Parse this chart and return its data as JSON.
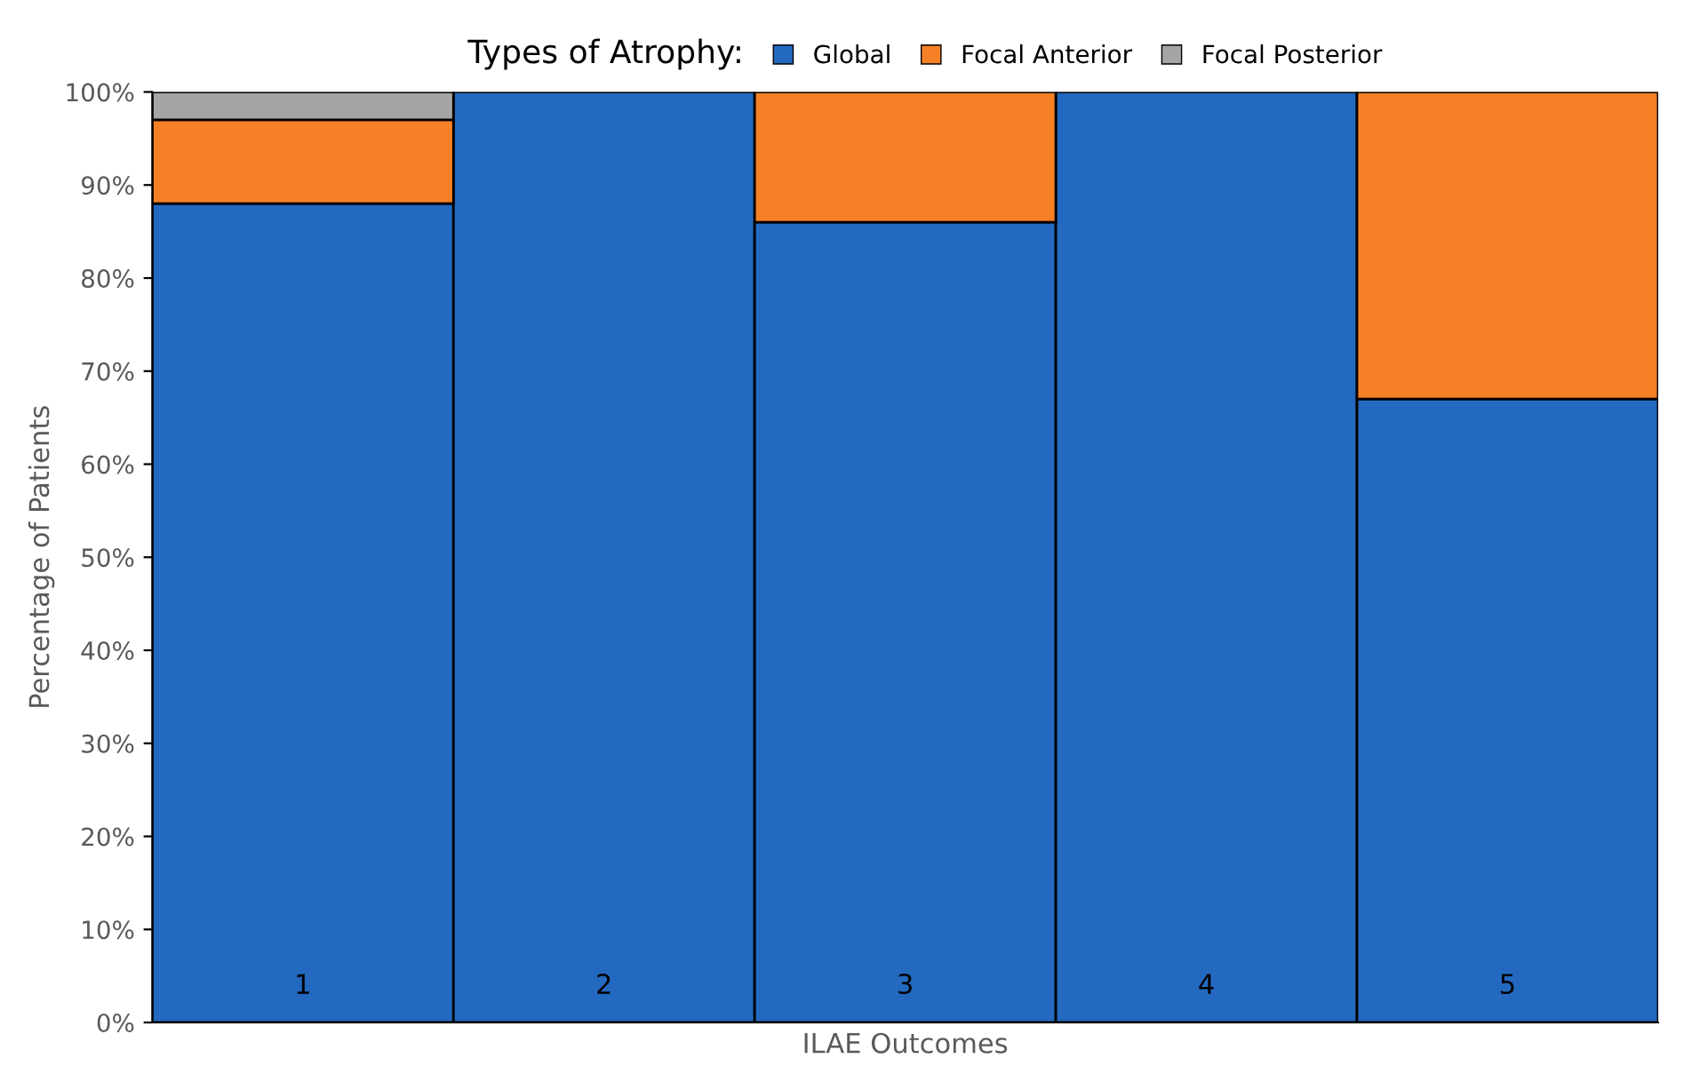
{
  "chart_data": {
    "type": "bar",
    "stacked": true,
    "xlabel": "ILAE Outcomes",
    "ylabel": "Percentage of Patients",
    "legend_title": "Types of Atrophy:",
    "legend": "top",
    "categories": [
      "1",
      "2",
      "3",
      "4",
      "5"
    ],
    "series": [
      {
        "name": "Global",
        "color": "#2469c0",
        "values": [
          88,
          100,
          86,
          100,
          67
        ]
      },
      {
        "name": "Focal Anterior",
        "color": "#f58025",
        "values": [
          9,
          null,
          14,
          null,
          33
        ]
      },
      {
        "name": "Focal Posterior",
        "color": "#a5a5a5",
        "values": [
          3,
          null,
          null,
          null,
          null
        ]
      }
    ],
    "ylim": [
      0,
      100
    ],
    "yticks": [
      {
        "value": 0,
        "label": "0%"
      },
      {
        "value": 10,
        "label": "10%"
      },
      {
        "value": 20,
        "label": "20%"
      },
      {
        "value": 30,
        "label": "30%"
      },
      {
        "value": 40,
        "label": "40%"
      },
      {
        "value": 50,
        "label": "50%"
      },
      {
        "value": 60,
        "label": "60%"
      },
      {
        "value": 70,
        "label": "70%"
      },
      {
        "value": 80,
        "label": "80%"
      },
      {
        "value": 90,
        "label": "90%"
      },
      {
        "value": 100,
        "label": "100%"
      }
    ],
    "grid": false
  }
}
